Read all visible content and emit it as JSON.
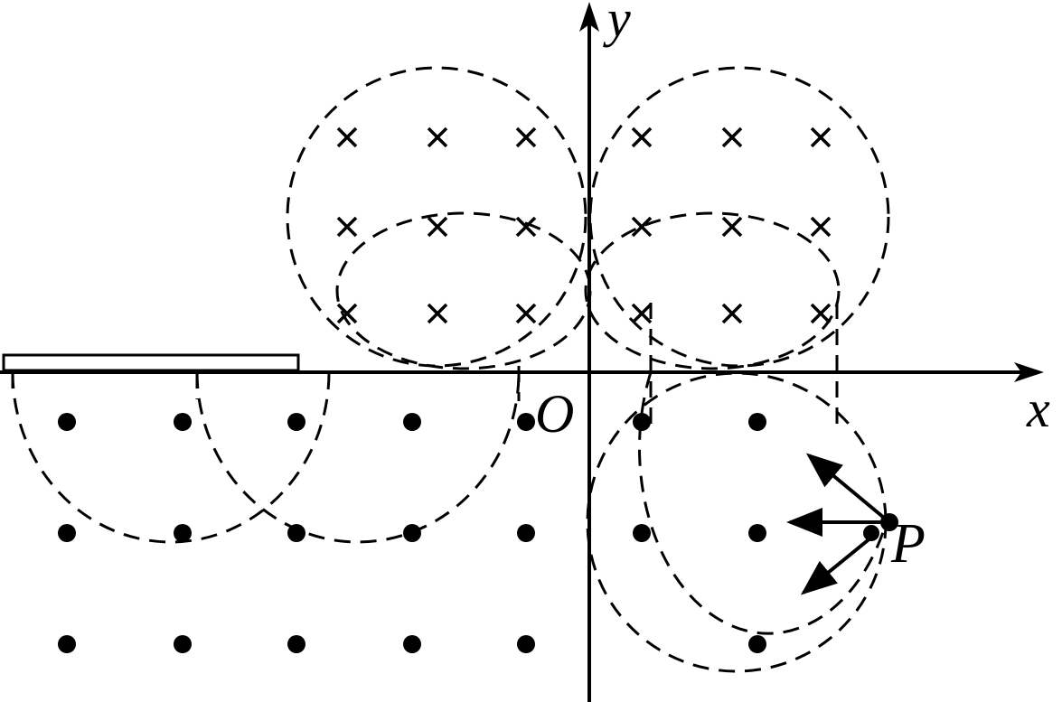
{
  "labels": {
    "y_axis": "y",
    "x_axis": "x",
    "origin": "O",
    "point": "P"
  },
  "symbols": {
    "into_page_field": "cross",
    "out_of_page_field": "dot"
  },
  "colors": {
    "ink": "#000000",
    "background": "#ffffff"
  }
}
